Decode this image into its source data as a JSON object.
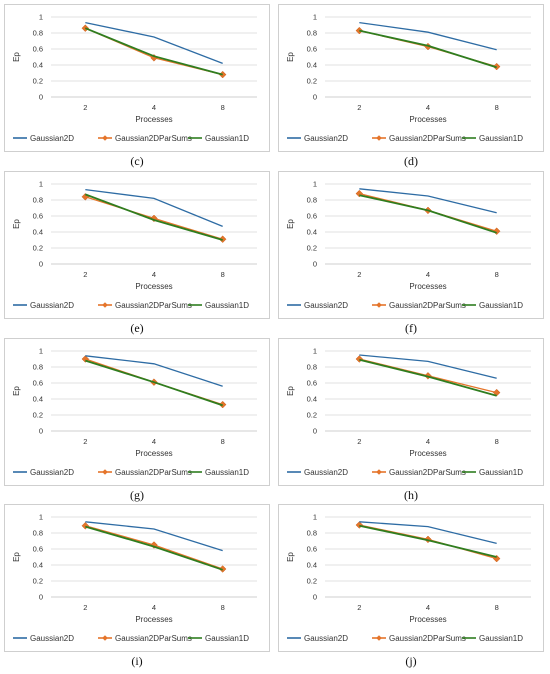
{
  "colors": {
    "Gaussian2D": "#2e6ca4",
    "Gaussian2DParSums": "#e5752b",
    "Gaussian1D": "#2f7d1f",
    "grid": "#d9d9d9",
    "axis": "#bfbfbf"
  },
  "chart_data": [
    {
      "type": "line",
      "caption": "(c)",
      "xlabel": "Processes",
      "ylabel": "Ep",
      "categories": [
        "2",
        "4",
        "8"
      ],
      "yticks": [
        "0",
        "0.2",
        "0.4",
        "0.6",
        "0.8",
        "1"
      ],
      "ylim": [
        0,
        1
      ],
      "grid": true,
      "legend": "bottom",
      "series": [
        {
          "name": "Gaussian2D",
          "values": [
            0.93,
            0.75,
            0.42
          ]
        },
        {
          "name": "Gaussian2DParSums",
          "values": [
            0.86,
            0.49,
            0.28
          ]
        },
        {
          "name": "Gaussian1D",
          "values": [
            0.86,
            0.51,
            0.28
          ]
        }
      ]
    },
    {
      "type": "line",
      "caption": "(d)",
      "xlabel": "Processes",
      "ylabel": "Ep",
      "categories": [
        "2",
        "4",
        "8"
      ],
      "yticks": [
        "0",
        "0.2",
        "0.4",
        "0.6",
        "0.8",
        "1"
      ],
      "ylim": [
        0,
        1
      ],
      "grid": true,
      "legend": "bottom",
      "series": [
        {
          "name": "Gaussian2D",
          "values": [
            0.93,
            0.81,
            0.59
          ]
        },
        {
          "name": "Gaussian2DParSums",
          "values": [
            0.83,
            0.63,
            0.38
          ]
        },
        {
          "name": "Gaussian1D",
          "values": [
            0.83,
            0.64,
            0.37
          ]
        }
      ]
    },
    {
      "type": "line",
      "caption": "(e)",
      "xlabel": "Processes",
      "ylabel": "Ep",
      "categories": [
        "2",
        "4",
        "8"
      ],
      "yticks": [
        "0",
        "0.2",
        "0.4",
        "0.6",
        "0.8",
        "1"
      ],
      "ylim": [
        0,
        1
      ],
      "grid": true,
      "legend": "bottom",
      "series": [
        {
          "name": "Gaussian2D",
          "values": [
            0.93,
            0.82,
            0.47
          ]
        },
        {
          "name": "Gaussian2DParSums",
          "values": [
            0.84,
            0.57,
            0.31
          ]
        },
        {
          "name": "Gaussian1D",
          "values": [
            0.87,
            0.55,
            0.3
          ]
        }
      ]
    },
    {
      "type": "line",
      "caption": "(f)",
      "xlabel": "Processes",
      "ylabel": "Ep",
      "categories": [
        "2",
        "4",
        "8"
      ],
      "yticks": [
        "0",
        "0.2",
        "0.4",
        "0.6",
        "0.8",
        "1"
      ],
      "ylim": [
        0,
        1
      ],
      "grid": true,
      "legend": "bottom",
      "series": [
        {
          "name": "Gaussian2D",
          "values": [
            0.94,
            0.85,
            0.64
          ]
        },
        {
          "name": "Gaussian2DParSums",
          "values": [
            0.88,
            0.67,
            0.41
          ]
        },
        {
          "name": "Gaussian1D",
          "values": [
            0.86,
            0.67,
            0.39
          ]
        }
      ]
    },
    {
      "type": "line",
      "caption": "(g)",
      "xlabel": "Processes",
      "ylabel": "Ep",
      "categories": [
        "2",
        "4",
        "8"
      ],
      "yticks": [
        "0",
        "0.2",
        "0.4",
        "0.6",
        "0.8",
        "1"
      ],
      "ylim": [
        0,
        1
      ],
      "grid": true,
      "legend": "bottom",
      "series": [
        {
          "name": "Gaussian2D",
          "values": [
            0.94,
            0.84,
            0.56
          ]
        },
        {
          "name": "Gaussian2DParSums",
          "values": [
            0.9,
            0.61,
            0.33
          ]
        },
        {
          "name": "Gaussian1D",
          "values": [
            0.88,
            0.61,
            0.32
          ]
        }
      ]
    },
    {
      "type": "line",
      "caption": "(h)",
      "xlabel": "Processes",
      "ylabel": "Ep",
      "categories": [
        "2",
        "4",
        "8"
      ],
      "yticks": [
        "0",
        "0.2",
        "0.4",
        "0.6",
        "0.8",
        "1"
      ],
      "ylim": [
        0,
        1
      ],
      "grid": true,
      "legend": "bottom",
      "series": [
        {
          "name": "Gaussian2D",
          "values": [
            0.95,
            0.87,
            0.66
          ]
        },
        {
          "name": "Gaussian2DParSums",
          "values": [
            0.9,
            0.69,
            0.48
          ]
        },
        {
          "name": "Gaussian1D",
          "values": [
            0.89,
            0.68,
            0.44
          ]
        }
      ]
    },
    {
      "type": "line",
      "caption": "(i)",
      "xlabel": "Processes",
      "ylabel": "Ep",
      "categories": [
        "2",
        "4",
        "8"
      ],
      "yticks": [
        "0",
        "0.2",
        "0.4",
        "0.6",
        "0.8",
        "1"
      ],
      "ylim": [
        0,
        1
      ],
      "grid": true,
      "legend": "bottom",
      "series": [
        {
          "name": "Gaussian2D",
          "values": [
            0.94,
            0.85,
            0.58
          ]
        },
        {
          "name": "Gaussian2DParSums",
          "values": [
            0.89,
            0.65,
            0.35
          ]
        },
        {
          "name": "Gaussian1D",
          "values": [
            0.88,
            0.63,
            0.34
          ]
        }
      ]
    },
    {
      "type": "line",
      "caption": "(j)",
      "xlabel": "Processes",
      "ylabel": "Ep",
      "categories": [
        "2",
        "4",
        "8"
      ],
      "yticks": [
        "0",
        "0.2",
        "0.4",
        "0.6",
        "0.8",
        "1"
      ],
      "ylim": [
        0,
        1
      ],
      "grid": true,
      "legend": "bottom",
      "series": [
        {
          "name": "Gaussian2D",
          "values": [
            0.94,
            0.88,
            0.67
          ]
        },
        {
          "name": "Gaussian2DParSums",
          "values": [
            0.9,
            0.72,
            0.48
          ]
        },
        {
          "name": "Gaussian1D",
          "values": [
            0.89,
            0.71,
            0.5
          ]
        }
      ]
    }
  ]
}
